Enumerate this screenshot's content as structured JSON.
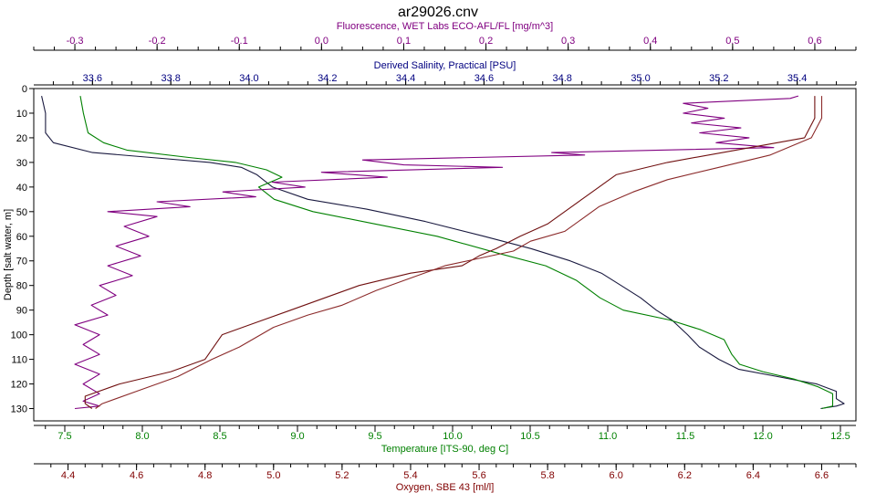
{
  "chart_data": {
    "type": "line",
    "title": "ar29026.cnv",
    "y_axis": {
      "label": "Depth [salt water, m]",
      "range": [
        0,
        135
      ],
      "reversed": true,
      "ticks": [
        0,
        10,
        20,
        30,
        40,
        50,
        60,
        70,
        80,
        90,
        100,
        110,
        120,
        130
      ]
    },
    "x_axes": [
      {
        "id": "fluorescence",
        "position": "top-outer",
        "label": "Fluorescence, WET Labs ECO-AFL/FL [mg/m^3]",
        "color": "#800080",
        "range": [
          -0.35,
          0.65
        ],
        "ticks": [
          -0.3,
          -0.2,
          -0.1,
          0.0,
          0.1,
          0.2,
          0.3,
          0.4,
          0.5,
          0.6
        ],
        "tick_labels": [
          "-0.3",
          "-0.2",
          "-0.1",
          "0.0",
          "0.1",
          "0.2",
          "0.3",
          "0.4",
          "0.5",
          "0.6"
        ]
      },
      {
        "id": "salinity",
        "position": "top-inner",
        "label": "Derived Salinity, Practical [PSU]",
        "color": "#000080",
        "range": [
          33.45,
          35.55
        ],
        "ticks": [
          33.6,
          33.8,
          34.0,
          34.2,
          34.4,
          34.6,
          34.8,
          35.0,
          35.2,
          35.4
        ],
        "tick_labels": [
          "33.6",
          "33.8",
          "34.0",
          "34.2",
          "34.4",
          "34.6",
          "34.8",
          "35.0",
          "35.2",
          "35.4"
        ]
      },
      {
        "id": "temperature",
        "position": "bottom-inner",
        "label": "Temperature [ITS-90, deg C]",
        "color": "#008000",
        "range": [
          7.3,
          12.6
        ],
        "ticks": [
          7.5,
          8.0,
          8.5,
          9.0,
          9.5,
          10.0,
          10.5,
          11.0,
          11.5,
          12.0,
          12.5
        ],
        "tick_labels": [
          "7.5",
          "8.0",
          "8.5",
          "9.0",
          "9.5",
          "10.0",
          "10.5",
          "11.0",
          "11.5",
          "12.0",
          "12.5"
        ]
      },
      {
        "id": "oxygen",
        "position": "bottom-outer",
        "label": "Oxygen, SBE 43 [ml/l]",
        "color": "#800000",
        "range": [
          4.3,
          6.7
        ],
        "ticks": [
          4.4,
          4.6,
          4.8,
          5.0,
          5.2,
          5.4,
          5.6,
          5.8,
          6.0,
          6.2,
          6.4,
          6.6
        ],
        "tick_labels": [
          "4.4",
          "4.6",
          "4.8",
          "5.0",
          "5.2",
          "5.4",
          "5.6",
          "5.8",
          "6.0",
          "6.2",
          "6.4",
          "6.6"
        ]
      }
    ],
    "series": [
      {
        "axis": "salinity",
        "color": "#1a1a40",
        "points": [
          [
            33.47,
            3
          ],
          [
            33.48,
            10
          ],
          [
            33.48,
            18
          ],
          [
            33.5,
            22
          ],
          [
            33.6,
            26
          ],
          [
            33.75,
            28
          ],
          [
            33.9,
            30
          ],
          [
            33.98,
            32
          ],
          [
            34.02,
            35
          ],
          [
            34.06,
            40
          ],
          [
            34.15,
            45
          ],
          [
            34.3,
            49
          ],
          [
            34.45,
            54
          ],
          [
            34.6,
            60
          ],
          [
            34.72,
            65
          ],
          [
            34.82,
            70
          ],
          [
            34.9,
            75
          ],
          [
            34.95,
            80
          ],
          [
            35.0,
            85
          ],
          [
            35.04,
            90
          ],
          [
            35.08,
            94
          ],
          [
            35.12,
            100
          ],
          [
            35.15,
            105
          ],
          [
            35.2,
            110
          ],
          [
            35.25,
            114
          ],
          [
            35.35,
            117
          ],
          [
            35.45,
            120
          ],
          [
            35.5,
            123
          ],
          [
            35.5,
            126
          ],
          [
            35.52,
            128
          ],
          [
            35.5,
            129
          ],
          [
            35.46,
            130
          ]
        ]
      },
      {
        "axis": "temperature",
        "color": "#008000",
        "points": [
          [
            7.6,
            3
          ],
          [
            7.62,
            10
          ],
          [
            7.65,
            18
          ],
          [
            7.75,
            22
          ],
          [
            7.9,
            25
          ],
          [
            8.3,
            28
          ],
          [
            8.6,
            30
          ],
          [
            8.8,
            33
          ],
          [
            8.9,
            36
          ],
          [
            8.75,
            40
          ],
          [
            8.85,
            45
          ],
          [
            9.1,
            50
          ],
          [
            9.5,
            55
          ],
          [
            9.9,
            60
          ],
          [
            10.3,
            67
          ],
          [
            10.6,
            72
          ],
          [
            10.8,
            78
          ],
          [
            10.95,
            85
          ],
          [
            11.1,
            90
          ],
          [
            11.4,
            94
          ],
          [
            11.6,
            98
          ],
          [
            11.75,
            102
          ],
          [
            11.8,
            108
          ],
          [
            11.85,
            112
          ],
          [
            12.0,
            115
          ],
          [
            12.2,
            118
          ],
          [
            12.35,
            121
          ],
          [
            12.45,
            124
          ],
          [
            12.45,
            127
          ],
          [
            12.45,
            129
          ],
          [
            12.38,
            130
          ]
        ]
      },
      {
        "axis": "fluorescence",
        "color": "#800080",
        "points": [
          [
            0.58,
            3
          ],
          [
            0.57,
            4
          ],
          [
            0.44,
            6
          ],
          [
            0.47,
            8
          ],
          [
            0.44,
            10
          ],
          [
            0.49,
            12
          ],
          [
            0.45,
            14
          ],
          [
            0.51,
            16
          ],
          [
            0.46,
            18
          ],
          [
            0.52,
            20
          ],
          [
            0.48,
            22
          ],
          [
            0.55,
            24
          ],
          [
            0.28,
            26
          ],
          [
            0.32,
            27
          ],
          [
            0.05,
            29
          ],
          [
            0.1,
            31
          ],
          [
            0.22,
            32
          ],
          [
            0.0,
            34
          ],
          [
            0.08,
            36
          ],
          [
            -0.06,
            38
          ],
          [
            -0.02,
            40
          ],
          [
            -0.12,
            42
          ],
          [
            -0.08,
            44
          ],
          [
            -0.2,
            46
          ],
          [
            -0.16,
            48
          ],
          [
            -0.26,
            50
          ],
          [
            -0.2,
            52
          ],
          [
            -0.24,
            56
          ],
          [
            -0.21,
            60
          ],
          [
            -0.25,
            64
          ],
          [
            -0.22,
            68
          ],
          [
            -0.26,
            72
          ],
          [
            -0.23,
            76
          ],
          [
            -0.27,
            80
          ],
          [
            -0.25,
            84
          ],
          [
            -0.28,
            88
          ],
          [
            -0.26,
            92
          ],
          [
            -0.3,
            96
          ],
          [
            -0.27,
            100
          ],
          [
            -0.29,
            104
          ],
          [
            -0.27,
            108
          ],
          [
            -0.3,
            112
          ],
          [
            -0.27,
            116
          ],
          [
            -0.29,
            120
          ],
          [
            -0.27,
            124
          ],
          [
            -0.29,
            127
          ],
          [
            -0.27,
            129
          ],
          [
            -0.3,
            130
          ]
        ]
      },
      {
        "axis": "oxygen",
        "color": "#701010",
        "points": [
          [
            6.58,
            3
          ],
          [
            6.58,
            12
          ],
          [
            6.55,
            20
          ],
          [
            6.35,
            25
          ],
          [
            6.15,
            30
          ],
          [
            6.0,
            35
          ],
          [
            5.95,
            40
          ],
          [
            5.9,
            45
          ],
          [
            5.85,
            50
          ],
          [
            5.8,
            55
          ],
          [
            5.72,
            60
          ],
          [
            5.65,
            65
          ],
          [
            5.6,
            68
          ],
          [
            5.55,
            72
          ],
          [
            5.4,
            75
          ],
          [
            5.25,
            80
          ],
          [
            5.15,
            85
          ],
          [
            5.05,
            90
          ],
          [
            4.95,
            95
          ],
          [
            4.85,
            100
          ],
          [
            4.8,
            110
          ],
          [
            4.7,
            115
          ],
          [
            4.55,
            120
          ],
          [
            4.45,
            125
          ],
          [
            4.45,
            128
          ],
          [
            4.47,
            130
          ]
        ]
      },
      {
        "axis": "oxygen",
        "color": "#8b2a2a",
        "points": [
          [
            6.6,
            3
          ],
          [
            6.6,
            12
          ],
          [
            6.57,
            20
          ],
          [
            6.45,
            27
          ],
          [
            6.3,
            32
          ],
          [
            6.15,
            37
          ],
          [
            6.05,
            42
          ],
          [
            5.95,
            48
          ],
          [
            5.9,
            53
          ],
          [
            5.85,
            58
          ],
          [
            5.75,
            62
          ],
          [
            5.7,
            66
          ],
          [
            5.6,
            69
          ],
          [
            5.5,
            72
          ],
          [
            5.42,
            76
          ],
          [
            5.3,
            82
          ],
          [
            5.2,
            88
          ],
          [
            5.1,
            92
          ],
          [
            5.0,
            97
          ],
          [
            4.9,
            105
          ],
          [
            4.82,
            110
          ],
          [
            4.72,
            117
          ],
          [
            4.6,
            123
          ],
          [
            4.5,
            128
          ],
          [
            4.48,
            130
          ]
        ]
      }
    ]
  }
}
